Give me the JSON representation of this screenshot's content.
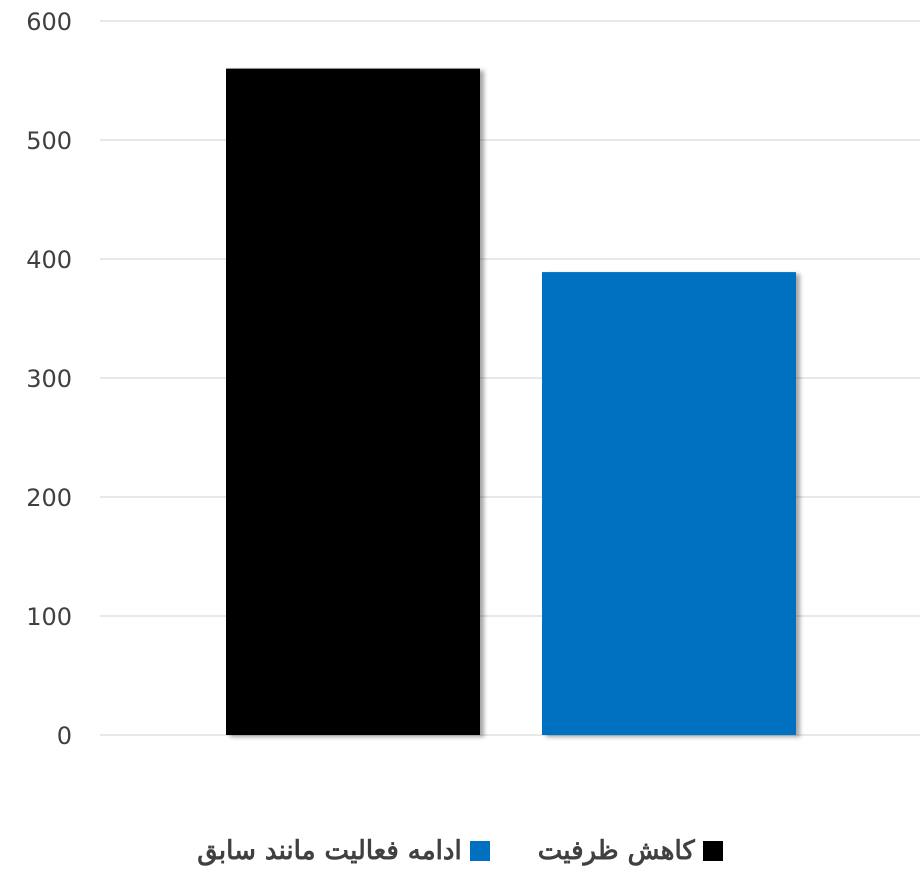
{
  "chart_data": {
    "type": "bar",
    "title": "",
    "xlabel": "",
    "ylabel": "",
    "ylim": [
      0,
      600
    ],
    "yticks": [
      0,
      100,
      200,
      300,
      400,
      500,
      600
    ],
    "grid": true,
    "legend_position": "bottom",
    "series": [
      {
        "name": "کاهش ظرفیت",
        "value": 560,
        "color": "#000000"
      },
      {
        "name": "ادامه فعالیت مانند سابق",
        "value": 389,
        "color": "#0070C0"
      }
    ]
  }
}
